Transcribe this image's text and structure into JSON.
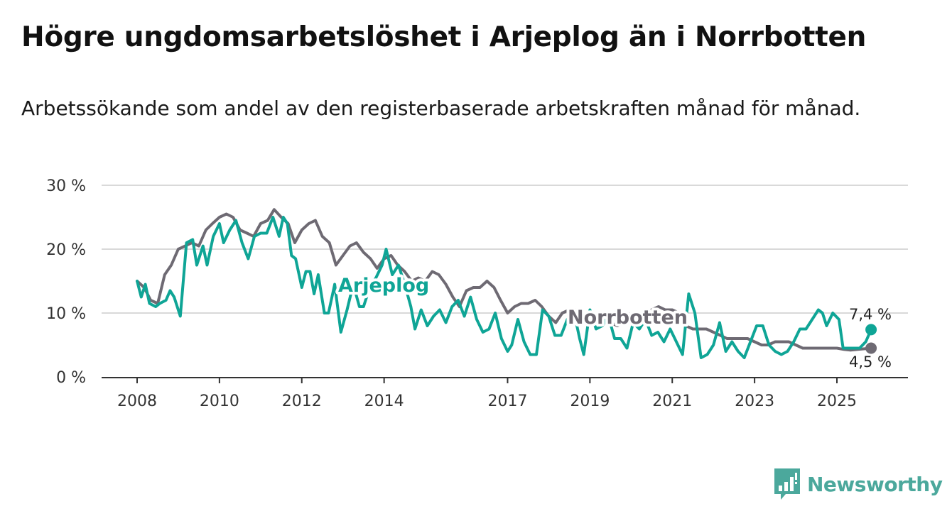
{
  "title": "Högre ungdomsarbetslöshet i Arjeplog än i Norrbotten",
  "subtitle": "Arbetssökande som andel av den registerbaserade arbetskraften månad för månad.",
  "brand": {
    "name": "Newsworthy",
    "color": "#4ba89c"
  },
  "colors": {
    "arjeplog": "#0fa596",
    "norrbotten": "#6e6a73",
    "grid": "#d9d9d9",
    "axis": "#333333"
  },
  "chart_data": {
    "type": "line",
    "title": "Högre ungdomsarbetslöshet i Arjeplog än i Norrbotten",
    "xlabel": "",
    "ylabel": "",
    "xlim": [
      2008.0,
      2026.5
    ],
    "ylim": [
      0,
      30
    ],
    "y_ticks": [
      {
        "value": 0,
        "label": "0 %"
      },
      {
        "value": 10,
        "label": "10 %"
      },
      {
        "value": 20,
        "label": "20 %"
      },
      {
        "value": 30,
        "label": "30 %"
      }
    ],
    "x_ticks": [
      {
        "value": 2008,
        "label": "2008"
      },
      {
        "value": 2010,
        "label": "2010"
      },
      {
        "value": 2012,
        "label": "2012"
      },
      {
        "value": 2014,
        "label": "2014"
      },
      {
        "value": 2017,
        "label": "2017"
      },
      {
        "value": 2019,
        "label": "2019"
      },
      {
        "value": 2021,
        "label": "2021"
      },
      {
        "value": 2023,
        "label": "2023"
      },
      {
        "value": 2025,
        "label": "2025"
      }
    ],
    "series": [
      {
        "name": "Norrbotten",
        "label": "Norrbotten",
        "color": "#6e6a73",
        "end_label": "4,5 %",
        "points": [
          [
            2008.0,
            15.0
          ],
          [
            2008.17,
            14.0
          ],
          [
            2008.33,
            12.0
          ],
          [
            2008.5,
            11.5
          ],
          [
            2008.67,
            16.0
          ],
          [
            2008.83,
            17.5
          ],
          [
            2009.0,
            20.0
          ],
          [
            2009.17,
            20.5
          ],
          [
            2009.33,
            21.0
          ],
          [
            2009.5,
            20.5
          ],
          [
            2009.67,
            23.0
          ],
          [
            2009.83,
            24.0
          ],
          [
            2010.0,
            25.0
          ],
          [
            2010.17,
            25.5
          ],
          [
            2010.33,
            25.0
          ],
          [
            2010.5,
            23.0
          ],
          [
            2010.67,
            22.5
          ],
          [
            2010.83,
            22.0
          ],
          [
            2011.0,
            24.0
          ],
          [
            2011.17,
            24.5
          ],
          [
            2011.33,
            26.2
          ],
          [
            2011.5,
            25.0
          ],
          [
            2011.67,
            24.0
          ],
          [
            2011.83,
            21.0
          ],
          [
            2012.0,
            23.0
          ],
          [
            2012.17,
            24.0
          ],
          [
            2012.33,
            24.5
          ],
          [
            2012.5,
            22.0
          ],
          [
            2012.67,
            21.0
          ],
          [
            2012.83,
            17.5
          ],
          [
            2013.0,
            19.0
          ],
          [
            2013.17,
            20.5
          ],
          [
            2013.33,
            21.0
          ],
          [
            2013.5,
            19.5
          ],
          [
            2013.67,
            18.5
          ],
          [
            2013.83,
            17.0
          ],
          [
            2014.0,
            18.5
          ],
          [
            2014.17,
            19.0
          ],
          [
            2014.33,
            17.5
          ],
          [
            2014.5,
            16.5
          ],
          [
            2014.67,
            15.0
          ],
          [
            2014.83,
            15.5
          ],
          [
            2015.0,
            15.0
          ],
          [
            2015.17,
            16.5
          ],
          [
            2015.33,
            16.0
          ],
          [
            2015.5,
            14.5
          ],
          [
            2015.67,
            12.5
          ],
          [
            2015.83,
            11.0
          ],
          [
            2016.0,
            13.5
          ],
          [
            2016.17,
            14.0
          ],
          [
            2016.33,
            14.0
          ],
          [
            2016.5,
            15.0
          ],
          [
            2016.67,
            14.0
          ],
          [
            2016.83,
            12.0
          ],
          [
            2017.0,
            10.0
          ],
          [
            2017.17,
            11.0
          ],
          [
            2017.33,
            11.5
          ],
          [
            2017.5,
            11.5
          ],
          [
            2017.67,
            12.0
          ],
          [
            2017.83,
            11.0
          ],
          [
            2018.0,
            9.5
          ],
          [
            2018.17,
            8.5
          ],
          [
            2018.33,
            10.0
          ],
          [
            2018.5,
            10.5
          ],
          [
            2018.67,
            10.5
          ],
          [
            2018.83,
            9.5
          ],
          [
            2019.0,
            9.0
          ],
          [
            2019.17,
            8.5
          ],
          [
            2019.33,
            9.0
          ],
          [
            2019.5,
            8.5
          ],
          [
            2019.67,
            8.0
          ],
          [
            2019.83,
            8.5
          ],
          [
            2020.0,
            9.0
          ],
          [
            2020.17,
            9.5
          ],
          [
            2020.33,
            10.0
          ],
          [
            2020.5,
            10.5
          ],
          [
            2020.67,
            11.0
          ],
          [
            2020.83,
            10.5
          ],
          [
            2021.0,
            10.5
          ],
          [
            2021.17,
            10.0
          ],
          [
            2021.33,
            8.0
          ],
          [
            2021.5,
            7.5
          ],
          [
            2021.67,
            7.5
          ],
          [
            2021.83,
            7.5
          ],
          [
            2022.0,
            7.0
          ],
          [
            2022.17,
            6.5
          ],
          [
            2022.33,
            6.0
          ],
          [
            2022.5,
            6.0
          ],
          [
            2022.67,
            6.0
          ],
          [
            2022.83,
            6.0
          ],
          [
            2023.0,
            5.5
          ],
          [
            2023.17,
            5.0
          ],
          [
            2023.33,
            5.0
          ],
          [
            2023.5,
            5.5
          ],
          [
            2023.67,
            5.5
          ],
          [
            2023.83,
            5.5
          ],
          [
            2024.0,
            5.0
          ],
          [
            2024.17,
            4.5
          ],
          [
            2024.33,
            4.5
          ],
          [
            2024.5,
            4.5
          ],
          [
            2024.67,
            4.5
          ],
          [
            2024.83,
            4.5
          ],
          [
            2025.0,
            4.5
          ],
          [
            2025.17,
            4.3
          ],
          [
            2025.33,
            4.2
          ],
          [
            2025.5,
            4.3
          ],
          [
            2025.67,
            4.4
          ],
          [
            2025.83,
            4.5
          ]
        ]
      },
      {
        "name": "Arjeplog",
        "label": "Arjeplog",
        "color": "#0fa596",
        "end_label": "7,4 %",
        "points": [
          [
            2008.0,
            15.0
          ],
          [
            2008.1,
            12.5
          ],
          [
            2008.2,
            14.5
          ],
          [
            2008.3,
            11.5
          ],
          [
            2008.45,
            11.0
          ],
          [
            2008.55,
            11.5
          ],
          [
            2008.7,
            12.0
          ],
          [
            2008.8,
            13.5
          ],
          [
            2008.9,
            12.5
          ],
          [
            2009.05,
            9.5
          ],
          [
            2009.2,
            21.0
          ],
          [
            2009.35,
            21.5
          ],
          [
            2009.45,
            17.5
          ],
          [
            2009.6,
            20.5
          ],
          [
            2009.7,
            17.5
          ],
          [
            2009.85,
            22.0
          ],
          [
            2010.0,
            24.0
          ],
          [
            2010.1,
            21.0
          ],
          [
            2010.25,
            23.0
          ],
          [
            2010.4,
            24.5
          ],
          [
            2010.55,
            21.0
          ],
          [
            2010.7,
            18.5
          ],
          [
            2010.85,
            22.0
          ],
          [
            2011.0,
            22.5
          ],
          [
            2011.15,
            22.5
          ],
          [
            2011.3,
            25.0
          ],
          [
            2011.45,
            22.0
          ],
          [
            2011.55,
            25.0
          ],
          [
            2011.65,
            24.0
          ],
          [
            2011.75,
            19.0
          ],
          [
            2011.85,
            18.5
          ],
          [
            2012.0,
            14.0
          ],
          [
            2012.1,
            16.5
          ],
          [
            2012.2,
            16.5
          ],
          [
            2012.3,
            13.0
          ],
          [
            2012.4,
            16.0
          ],
          [
            2012.55,
            10.0
          ],
          [
            2012.65,
            10.0
          ],
          [
            2012.8,
            14.5
          ],
          [
            2012.95,
            7.0
          ],
          [
            2013.1,
            10.5
          ],
          [
            2013.25,
            14.5
          ],
          [
            2013.4,
            11.0
          ],
          [
            2013.5,
            11.0
          ],
          [
            2013.65,
            14.0
          ],
          [
            2013.8,
            15.5
          ],
          [
            2013.95,
            17.5
          ],
          [
            2014.05,
            20.0
          ],
          [
            2014.2,
            16.0
          ],
          [
            2014.35,
            17.5
          ],
          [
            2014.5,
            14.5
          ],
          [
            2014.65,
            11.0
          ],
          [
            2014.75,
            7.5
          ],
          [
            2014.9,
            10.5
          ],
          [
            2015.05,
            8.0
          ],
          [
            2015.2,
            9.5
          ],
          [
            2015.35,
            10.5
          ],
          [
            2015.5,
            8.5
          ],
          [
            2015.65,
            11.0
          ],
          [
            2015.8,
            12.0
          ],
          [
            2015.95,
            9.5
          ],
          [
            2016.1,
            12.5
          ],
          [
            2016.25,
            9.0
          ],
          [
            2016.4,
            7.0
          ],
          [
            2016.55,
            7.5
          ],
          [
            2016.7,
            10.0
          ],
          [
            2016.85,
            6.0
          ],
          [
            2017.0,
            4.0
          ],
          [
            2017.1,
            5.0
          ],
          [
            2017.25,
            9.0
          ],
          [
            2017.4,
            5.5
          ],
          [
            2017.55,
            3.5
          ],
          [
            2017.7,
            3.5
          ],
          [
            2017.85,
            10.5
          ],
          [
            2018.0,
            9.5
          ],
          [
            2018.15,
            6.5
          ],
          [
            2018.3,
            6.5
          ],
          [
            2018.45,
            9.0
          ],
          [
            2018.6,
            10.5
          ],
          [
            2018.75,
            6.0
          ],
          [
            2018.85,
            3.5
          ],
          [
            2019.0,
            10.5
          ],
          [
            2019.15,
            7.5
          ],
          [
            2019.3,
            8.0
          ],
          [
            2019.45,
            9.5
          ],
          [
            2019.6,
            6.0
          ],
          [
            2019.75,
            6.0
          ],
          [
            2019.9,
            4.5
          ],
          [
            2020.05,
            8.5
          ],
          [
            2020.2,
            7.5
          ],
          [
            2020.35,
            9.0
          ],
          [
            2020.5,
            6.5
          ],
          [
            2020.65,
            7.0
          ],
          [
            2020.8,
            5.5
          ],
          [
            2020.95,
            7.5
          ],
          [
            2021.1,
            5.5
          ],
          [
            2021.25,
            3.5
          ],
          [
            2021.4,
            13.0
          ],
          [
            2021.55,
            10.0
          ],
          [
            2021.7,
            3.0
          ],
          [
            2021.85,
            3.5
          ],
          [
            2022.0,
            5.0
          ],
          [
            2022.15,
            8.5
          ],
          [
            2022.3,
            4.0
          ],
          [
            2022.45,
            5.5
          ],
          [
            2022.6,
            4.0
          ],
          [
            2022.75,
            3.0
          ],
          [
            2022.9,
            5.5
          ],
          [
            2023.05,
            8.0
          ],
          [
            2023.2,
            8.0
          ],
          [
            2023.35,
            5.0
          ],
          [
            2023.5,
            4.0
          ],
          [
            2023.65,
            3.5
          ],
          [
            2023.8,
            4.0
          ],
          [
            2023.95,
            5.5
          ],
          [
            2024.1,
            7.5
          ],
          [
            2024.25,
            7.5
          ],
          [
            2024.4,
            9.0
          ],
          [
            2024.55,
            10.5
          ],
          [
            2024.65,
            10.0
          ],
          [
            2024.75,
            8.0
          ],
          [
            2024.9,
            10.0
          ],
          [
            2025.05,
            9.0
          ],
          [
            2025.15,
            4.5
          ],
          [
            2025.35,
            4.5
          ],
          [
            2025.55,
            4.5
          ],
          [
            2025.7,
            5.5
          ],
          [
            2025.83,
            7.4
          ]
        ]
      }
    ]
  }
}
